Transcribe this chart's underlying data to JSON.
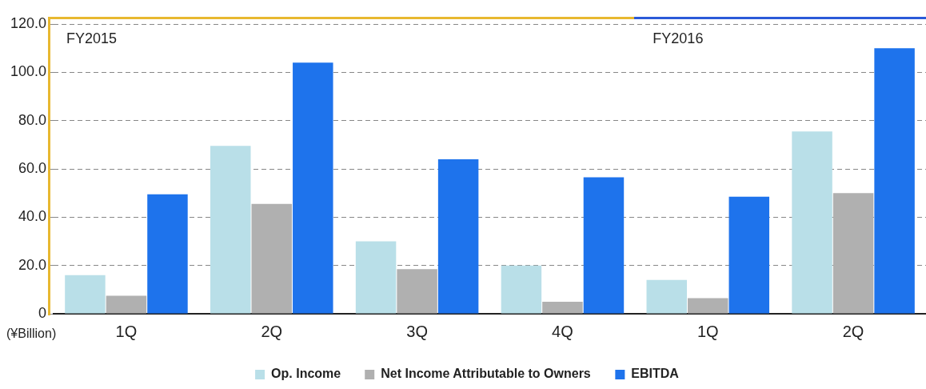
{
  "chart_data": {
    "type": "bar",
    "categories": [
      "1Q",
      "2Q",
      "3Q",
      "4Q",
      "1Q",
      "2Q"
    ],
    "series": [
      {
        "name": "Op. Income",
        "color": "#b9dfe8",
        "values": [
          16,
          69.5,
          30,
          20,
          14,
          75.5
        ]
      },
      {
        "name": "Net Income Attributable to Owners",
        "color": "#b0b0b0",
        "values": [
          7.5,
          45.5,
          18.5,
          5,
          6.5,
          50
        ]
      },
      {
        "name": "EBITDA",
        "color": "#1e73ec",
        "values": [
          49.5,
          104,
          64,
          56.5,
          48.5,
          110
        ]
      }
    ],
    "ylabel": "(¥Billion)",
    "ylim": [
      0,
      120
    ],
    "yticks": [
      0,
      {
        "value": 20,
        "label": "20.0"
      },
      {
        "value": 40,
        "label": "40.0"
      },
      {
        "value": 60,
        "label": "60.0"
      },
      {
        "value": 80,
        "label": "80.0"
      },
      {
        "value": 100,
        "label": "100.0"
      },
      {
        "value": 120,
        "label": "120.0"
      }
    ],
    "annotations": [
      "FY2015",
      "FY2016"
    ],
    "grid": "y",
    "legend": "bottom"
  }
}
